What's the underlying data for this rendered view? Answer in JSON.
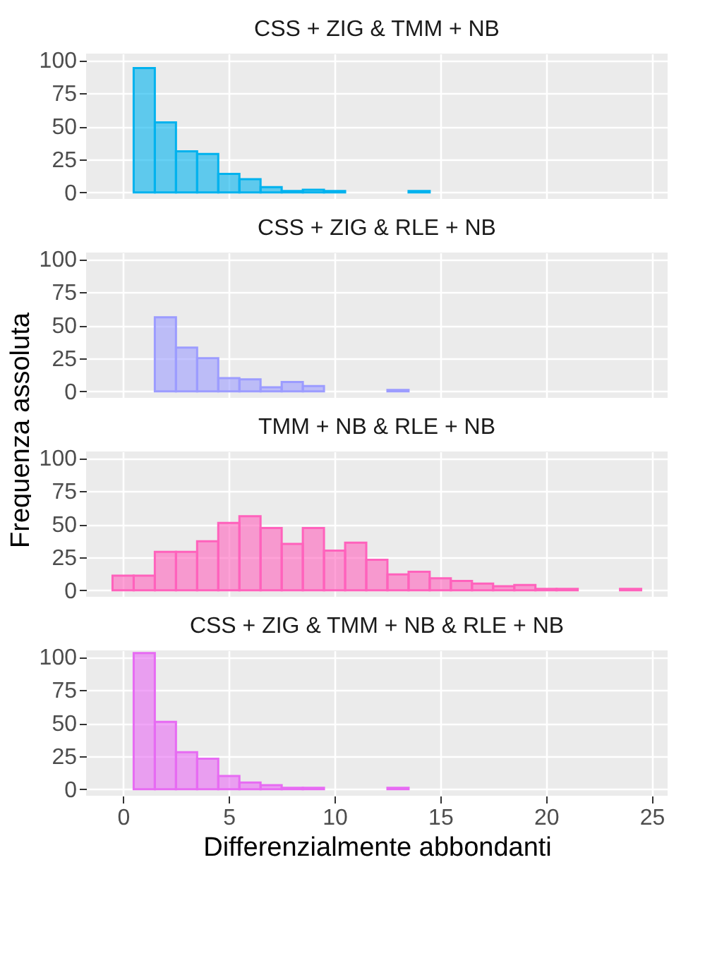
{
  "chart_data": [
    {
      "type": "histogram",
      "title": "CSS + ZIG & TMM + NB",
      "ylabel": "Frequenza assoluta",
      "color": "#00b2ee",
      "bins": [
        -0.5,
        0.5,
        1.5,
        2.5,
        3.5,
        4.5,
        5.5,
        6.5,
        7.5,
        8.5,
        9.5,
        10.5,
        11.5,
        12.5,
        13.5,
        14.5
      ],
      "values": [
        null,
        94,
        53,
        31,
        29,
        14,
        10,
        4,
        1,
        2,
        1,
        0,
        0,
        0,
        1
      ],
      "xlim": [
        -1.75,
        25.75
      ],
      "xticks": [
        0,
        5,
        10,
        15,
        20,
        25
      ],
      "ylim": [
        -5,
        105
      ],
      "yticks": [
        0,
        25,
        50,
        75,
        100
      ],
      "grid": true,
      "tick_labels": "y"
    },
    {
      "type": "histogram",
      "title": "CSS + ZIG & RLE + NB",
      "color": "#9c9cff",
      "bins": [
        -0.5,
        0.5,
        1.5,
        2.5,
        3.5,
        4.5,
        5.5,
        6.5,
        7.5,
        8.5,
        9.5,
        10.5,
        11.5,
        12.5,
        13.5
      ],
      "values": [
        null,
        null,
        56,
        33,
        25,
        10,
        9,
        3,
        7,
        4,
        0,
        0,
        0,
        1
      ],
      "xlim": [
        -1.75,
        25.75
      ],
      "xticks": [
        0,
        5,
        10,
        15,
        20,
        25
      ],
      "ylim": [
        -5,
        105
      ],
      "yticks": [
        0,
        25,
        50,
        75,
        100
      ],
      "grid": true,
      "tick_labels": "y"
    },
    {
      "type": "histogram",
      "title": "TMM + NB & RLE + NB",
      "color": "#ff62bc",
      "bins": [
        -0.5,
        0.5,
        1.5,
        2.5,
        3.5,
        4.5,
        5.5,
        6.5,
        7.5,
        8.5,
        9.5,
        10.5,
        11.5,
        12.5,
        13.5,
        14.5,
        15.5,
        16.5,
        17.5,
        18.5,
        19.5,
        20.5,
        21.5,
        22.5,
        23.5,
        24.5
      ],
      "values": [
        11,
        11,
        29,
        29,
        37,
        51,
        56,
        47,
        35,
        47,
        30,
        36,
        23,
        12,
        14,
        9,
        7,
        5,
        3,
        4,
        1,
        1,
        0,
        0,
        1
      ],
      "xlim": [
        -1.75,
        25.75
      ],
      "xticks": [
        0,
        5,
        10,
        15,
        20,
        25
      ],
      "ylim": [
        -5,
        105
      ],
      "yticks": [
        0,
        25,
        50,
        75,
        100
      ],
      "grid": true,
      "tick_labels": "y"
    },
    {
      "type": "histogram",
      "title": "CSS + ZIG & TMM + NB & RLE + NB",
      "xlabel": "Differenzialmente abbondanti",
      "color": "#e76bf3",
      "bins": [
        -0.5,
        0.5,
        1.5,
        2.5,
        3.5,
        4.5,
        5.5,
        6.5,
        7.5,
        8.5,
        9.5,
        10.5,
        11.5,
        12.5,
        13.5
      ],
      "values": [
        null,
        103,
        51,
        28,
        23,
        10,
        5,
        3,
        1,
        1,
        0,
        0,
        0,
        1
      ],
      "xlim": [
        -1.75,
        25.75
      ],
      "xticks": [
        0,
        5,
        10,
        15,
        20,
        25
      ],
      "ylim": [
        -5,
        105
      ],
      "yticks": [
        0,
        25,
        50,
        75,
        100
      ],
      "grid": true
    }
  ]
}
